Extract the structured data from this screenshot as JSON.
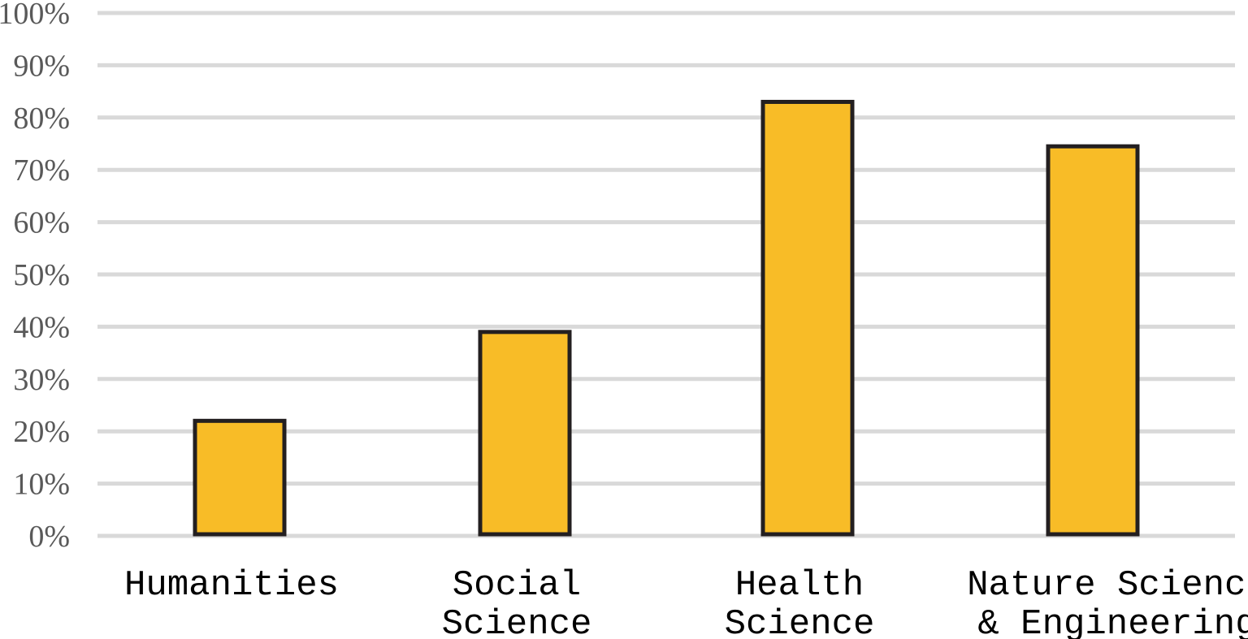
{
  "chart_data": {
    "type": "bar",
    "title": "",
    "xlabel": "",
    "ylabel": "",
    "categories": [
      [
        "Humanities"
      ],
      [
        "Social",
        "Science"
      ],
      [
        "Health",
        "Science"
      ],
      [
        "Nature Science",
        "& Engineering"
      ]
    ],
    "values": [
      0.22,
      0.39,
      0.83,
      0.745
    ],
    "ylim": [
      0,
      1
    ],
    "yticks": [
      "0%",
      "10%",
      "20%",
      "30%",
      "40%",
      "50%",
      "60%",
      "70%",
      "80%",
      "90%",
      "100%"
    ],
    "grid": true,
    "legend": "none",
    "colors": {
      "bar_fill": "#F8BC27",
      "bar_stroke": "#231F20",
      "grid": "#D9D9D9",
      "tick_text": "#595959"
    }
  }
}
